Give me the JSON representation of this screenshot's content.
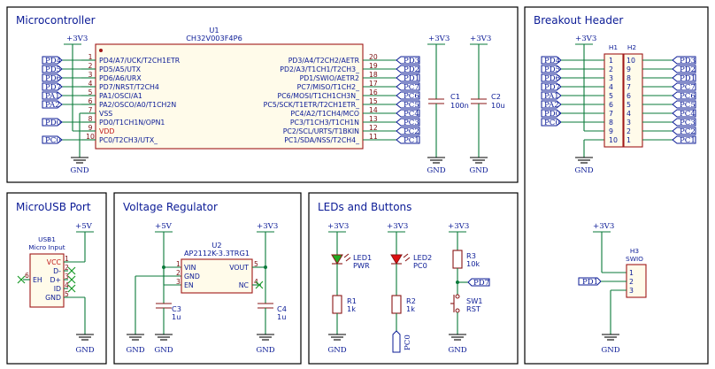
{
  "blocks": {
    "microcontroller": "Microcontroller",
    "breakout": "Breakout Header",
    "usb": "MicroUSB Port",
    "regulator": "Voltage Regulator",
    "leds": "LEDs and Buttons"
  },
  "nets": {
    "v33": "+3V3",
    "v5": "+5V",
    "gnd": "GND"
  },
  "mcu": {
    "ref": "U1",
    "value": "CH32V003F4P6",
    "left_pins": [
      {
        "num": "1",
        "name": "PD4/A7/UCK/T2CH1ETR",
        "net": "PD4"
      },
      {
        "num": "2",
        "name": "PD5/A5/UTX",
        "net": "PD5"
      },
      {
        "num": "3",
        "name": "PD6/A6/URX",
        "net": "PD6"
      },
      {
        "num": "4",
        "name": "PD7/NRST/T2CH4",
        "net": "PD7"
      },
      {
        "num": "5",
        "name": "PA1/OSCI/A1",
        "net": "PA1"
      },
      {
        "num": "6",
        "name": "PA2/OSCO/A0/T1CH2N",
        "net": "PA2"
      },
      {
        "num": "7",
        "name": "VSS",
        "net": ""
      },
      {
        "num": "8",
        "name": "PD0/T1CH1N/OPN1",
        "net": "PD0"
      },
      {
        "num": "9",
        "name": "VDD",
        "net": ""
      },
      {
        "num": "10",
        "name": "PC0/T2CH3/UTX_",
        "net": "PC0"
      }
    ],
    "right_pins": [
      {
        "num": "20",
        "name": "PD3/A4/T2CH2/AETR",
        "net": "PD3"
      },
      {
        "num": "19",
        "name": "PD2/A3/T1CH1/T2CH3_",
        "net": "PD2"
      },
      {
        "num": "18",
        "name": "PD1/SWIO/AETR2",
        "net": "PD1"
      },
      {
        "num": "17",
        "name": "PC7/MISO/T1CH2_",
        "net": "PC7"
      },
      {
        "num": "16",
        "name": "PC6/MOSI/T1CH1CH3N_",
        "net": "PC6"
      },
      {
        "num": "15",
        "name": "PC5/SCK/T1ETR/T2CH1ETR_",
        "net": "PC5"
      },
      {
        "num": "14",
        "name": "PC4/A2/T1CH4/MCO",
        "net": "PC4"
      },
      {
        "num": "13",
        "name": "PC3/T1CH3/T1CH1N",
        "net": "PC3"
      },
      {
        "num": "12",
        "name": "PC2/SCL/URTS/T1BKIN",
        "net": "PC2"
      },
      {
        "num": "11",
        "name": "PC1/SDA/NSS/T2CH4_",
        "net": "PC1"
      }
    ],
    "c1": {
      "ref": "C1",
      "value": "100n"
    },
    "c2": {
      "ref": "C2",
      "value": "10u"
    }
  },
  "header": {
    "h1": "H1",
    "h2": "H2",
    "h1_rows": [
      {
        "net": "PD4",
        "num": "1"
      },
      {
        "net": "PD5",
        "num": "2"
      },
      {
        "net": "PD6",
        "num": "3"
      },
      {
        "net": "PD7",
        "num": "4"
      },
      {
        "net": "PA1",
        "num": "5"
      },
      {
        "net": "PA2",
        "num": "6"
      },
      {
        "net": "PD0",
        "num": "7"
      },
      {
        "net": "PC0",
        "num": "8"
      },
      {
        "net": "",
        "num": "9"
      },
      {
        "net": "",
        "num": "10"
      }
    ],
    "h2_rows": [
      {
        "net": "PD3",
        "num": "10"
      },
      {
        "net": "PD2",
        "num": "9"
      },
      {
        "net": "PD1",
        "num": "8"
      },
      {
        "net": "PC7",
        "num": "7"
      },
      {
        "net": "PC6",
        "num": "6"
      },
      {
        "net": "PC5",
        "num": "5"
      },
      {
        "net": "PC4",
        "num": "4"
      },
      {
        "net": "PC3",
        "num": "3"
      },
      {
        "net": "PC2",
        "num": "2"
      },
      {
        "net": "PC1",
        "num": "1"
      }
    ],
    "h3": {
      "ref": "H3",
      "value": "SWIO",
      "pins": [
        "1",
        "2",
        "3"
      ],
      "net": "PD1"
    }
  },
  "usb": {
    "ref": "USB1",
    "value": "Micro Input",
    "pins": [
      {
        "name": "VCC",
        "num": "1"
      },
      {
        "name": "D-",
        "num": "2"
      },
      {
        "name": "D+",
        "num": "3"
      },
      {
        "name": "ID",
        "num": "4"
      },
      {
        "name": "GND",
        "num": "5"
      }
    ],
    "eh_name": "EH",
    "eh_num": "6"
  },
  "reg": {
    "ref": "U2",
    "value": "AP2112K-3.3TRG1",
    "pins": [
      {
        "name": "VIN",
        "num": "1"
      },
      {
        "name": "GND",
        "num": "2"
      },
      {
        "name": "EN",
        "num": "3"
      },
      {
        "name": "VOUT",
        "num": "5"
      },
      {
        "name": "NC",
        "num": "4"
      }
    ],
    "c3": {
      "ref": "C3",
      "value": "1u"
    },
    "c4": {
      "ref": "C4",
      "value": "1u"
    }
  },
  "leds": {
    "led1": {
      "ref": "LED1",
      "value": "PWR"
    },
    "led2": {
      "ref": "LED2",
      "value": "PC0"
    },
    "r1": {
      "ref": "R1",
      "value": "1k"
    },
    "r2": {
      "ref": "R2",
      "value": "1k"
    },
    "r3": {
      "ref": "R3",
      "value": "10k"
    },
    "sw1": {
      "ref": "SW1",
      "value": "RST"
    },
    "pd7": "PD7",
    "pc0": "PC0"
  },
  "colors": {
    "wire": "#0a7a3a",
    "body": "#fffbea",
    "text": "#0b1b96",
    "pin": "#7a0e0e",
    "led1": "#22aa22",
    "led2": "#dd1111"
  }
}
